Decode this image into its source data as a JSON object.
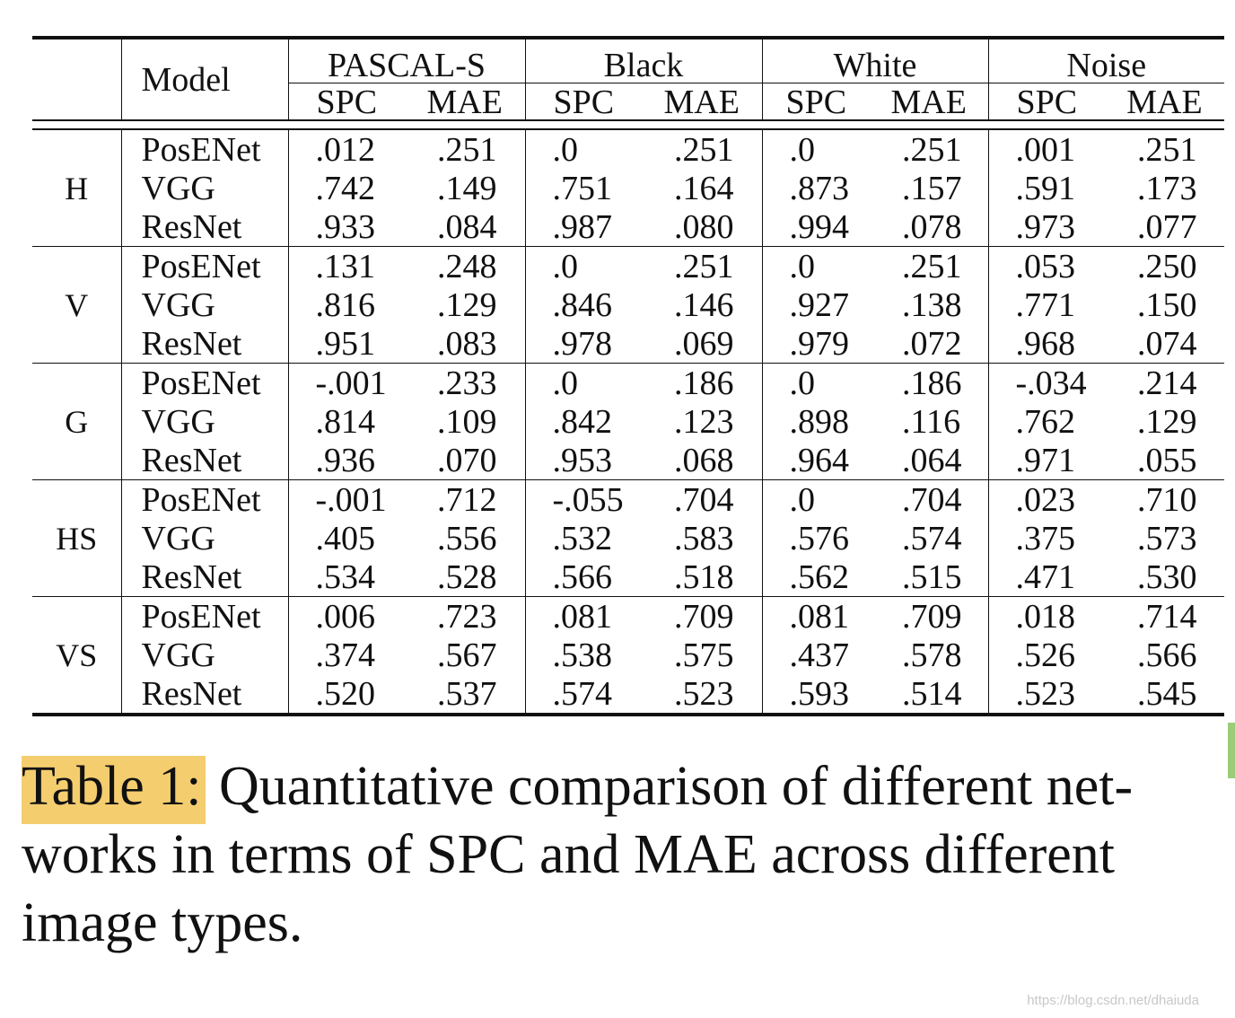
{
  "table": {
    "model_header": "Model",
    "datasets": [
      "PASCAL-S",
      "Black",
      "White",
      "Noise"
    ],
    "metrics": [
      "SPC",
      "MAE"
    ],
    "groups": [
      {
        "name": "H",
        "rows": [
          {
            "model": "PosENet",
            "values": [
              ".012",
              ".251",
              ".0",
              ".251",
              ".0",
              ".251",
              ".001",
              ".251"
            ]
          },
          {
            "model": "VGG",
            "values": [
              ".742",
              ".149",
              ".751",
              ".164",
              ".873",
              ".157",
              ".591",
              ".173"
            ]
          },
          {
            "model": "ResNet",
            "values": [
              ".933",
              ".084",
              ".987",
              ".080",
              ".994",
              ".078",
              ".973",
              ".077"
            ]
          }
        ]
      },
      {
        "name": "V",
        "rows": [
          {
            "model": "PosENet",
            "values": [
              ".131",
              ".248",
              ".0",
              ".251",
              ".0",
              ".251",
              ".053",
              ".250"
            ]
          },
          {
            "model": "VGG",
            "values": [
              ".816",
              ".129",
              ".846",
              ".146",
              ".927",
              ".138",
              ".771",
              ".150"
            ]
          },
          {
            "model": "ResNet",
            "values": [
              ".951",
              ".083",
              ".978",
              ".069",
              ".979",
              ".072",
              ".968",
              ".074"
            ]
          }
        ]
      },
      {
        "name": "G",
        "rows": [
          {
            "model": "PosENet",
            "values": [
              "-.001",
              ".233",
              ".0",
              ".186",
              ".0",
              ".186",
              "-.034",
              ".214"
            ]
          },
          {
            "model": "VGG",
            "values": [
              ".814",
              ".109",
              ".842",
              ".123",
              ".898",
              ".116",
              ".762",
              ".129"
            ]
          },
          {
            "model": "ResNet",
            "values": [
              ".936",
              ".070",
              ".953",
              ".068",
              ".964",
              ".064",
              ".971",
              ".055"
            ]
          }
        ]
      },
      {
        "name": "HS",
        "rows": [
          {
            "model": "PosENet",
            "values": [
              "-.001",
              ".712",
              "-.055",
              ".704",
              ".0",
              ".704",
              ".023",
              ".710"
            ]
          },
          {
            "model": "VGG",
            "values": [
              ".405",
              ".556",
              ".532",
              ".583",
              ".576",
              ".574",
              ".375",
              ".573"
            ]
          },
          {
            "model": "ResNet",
            "values": [
              ".534",
              ".528",
              ".566",
              ".518",
              ".562",
              ".515",
              ".471",
              ".530"
            ]
          }
        ]
      },
      {
        "name": "VS",
        "rows": [
          {
            "model": "PosENet",
            "values": [
              ".006",
              ".723",
              ".081",
              ".709",
              ".081",
              ".709",
              ".018",
              ".714"
            ]
          },
          {
            "model": "VGG",
            "values": [
              ".374",
              ".567",
              ".538",
              ".575",
              ".437",
              ".578",
              ".526",
              ".566"
            ]
          },
          {
            "model": "ResNet",
            "values": [
              ".520",
              ".537",
              ".574",
              ".523",
              ".593",
              ".514",
              ".523",
              ".545"
            ]
          }
        ]
      }
    ]
  },
  "caption": {
    "label": "Table 1:",
    "line1": "Quantitative comparison of different net-",
    "line2": "works in terms of SPC and MAE across different",
    "line3": "image types."
  },
  "highlight_color": "#f4cd6e",
  "watermark": "https://blog.csdn.net/dhaiuda"
}
